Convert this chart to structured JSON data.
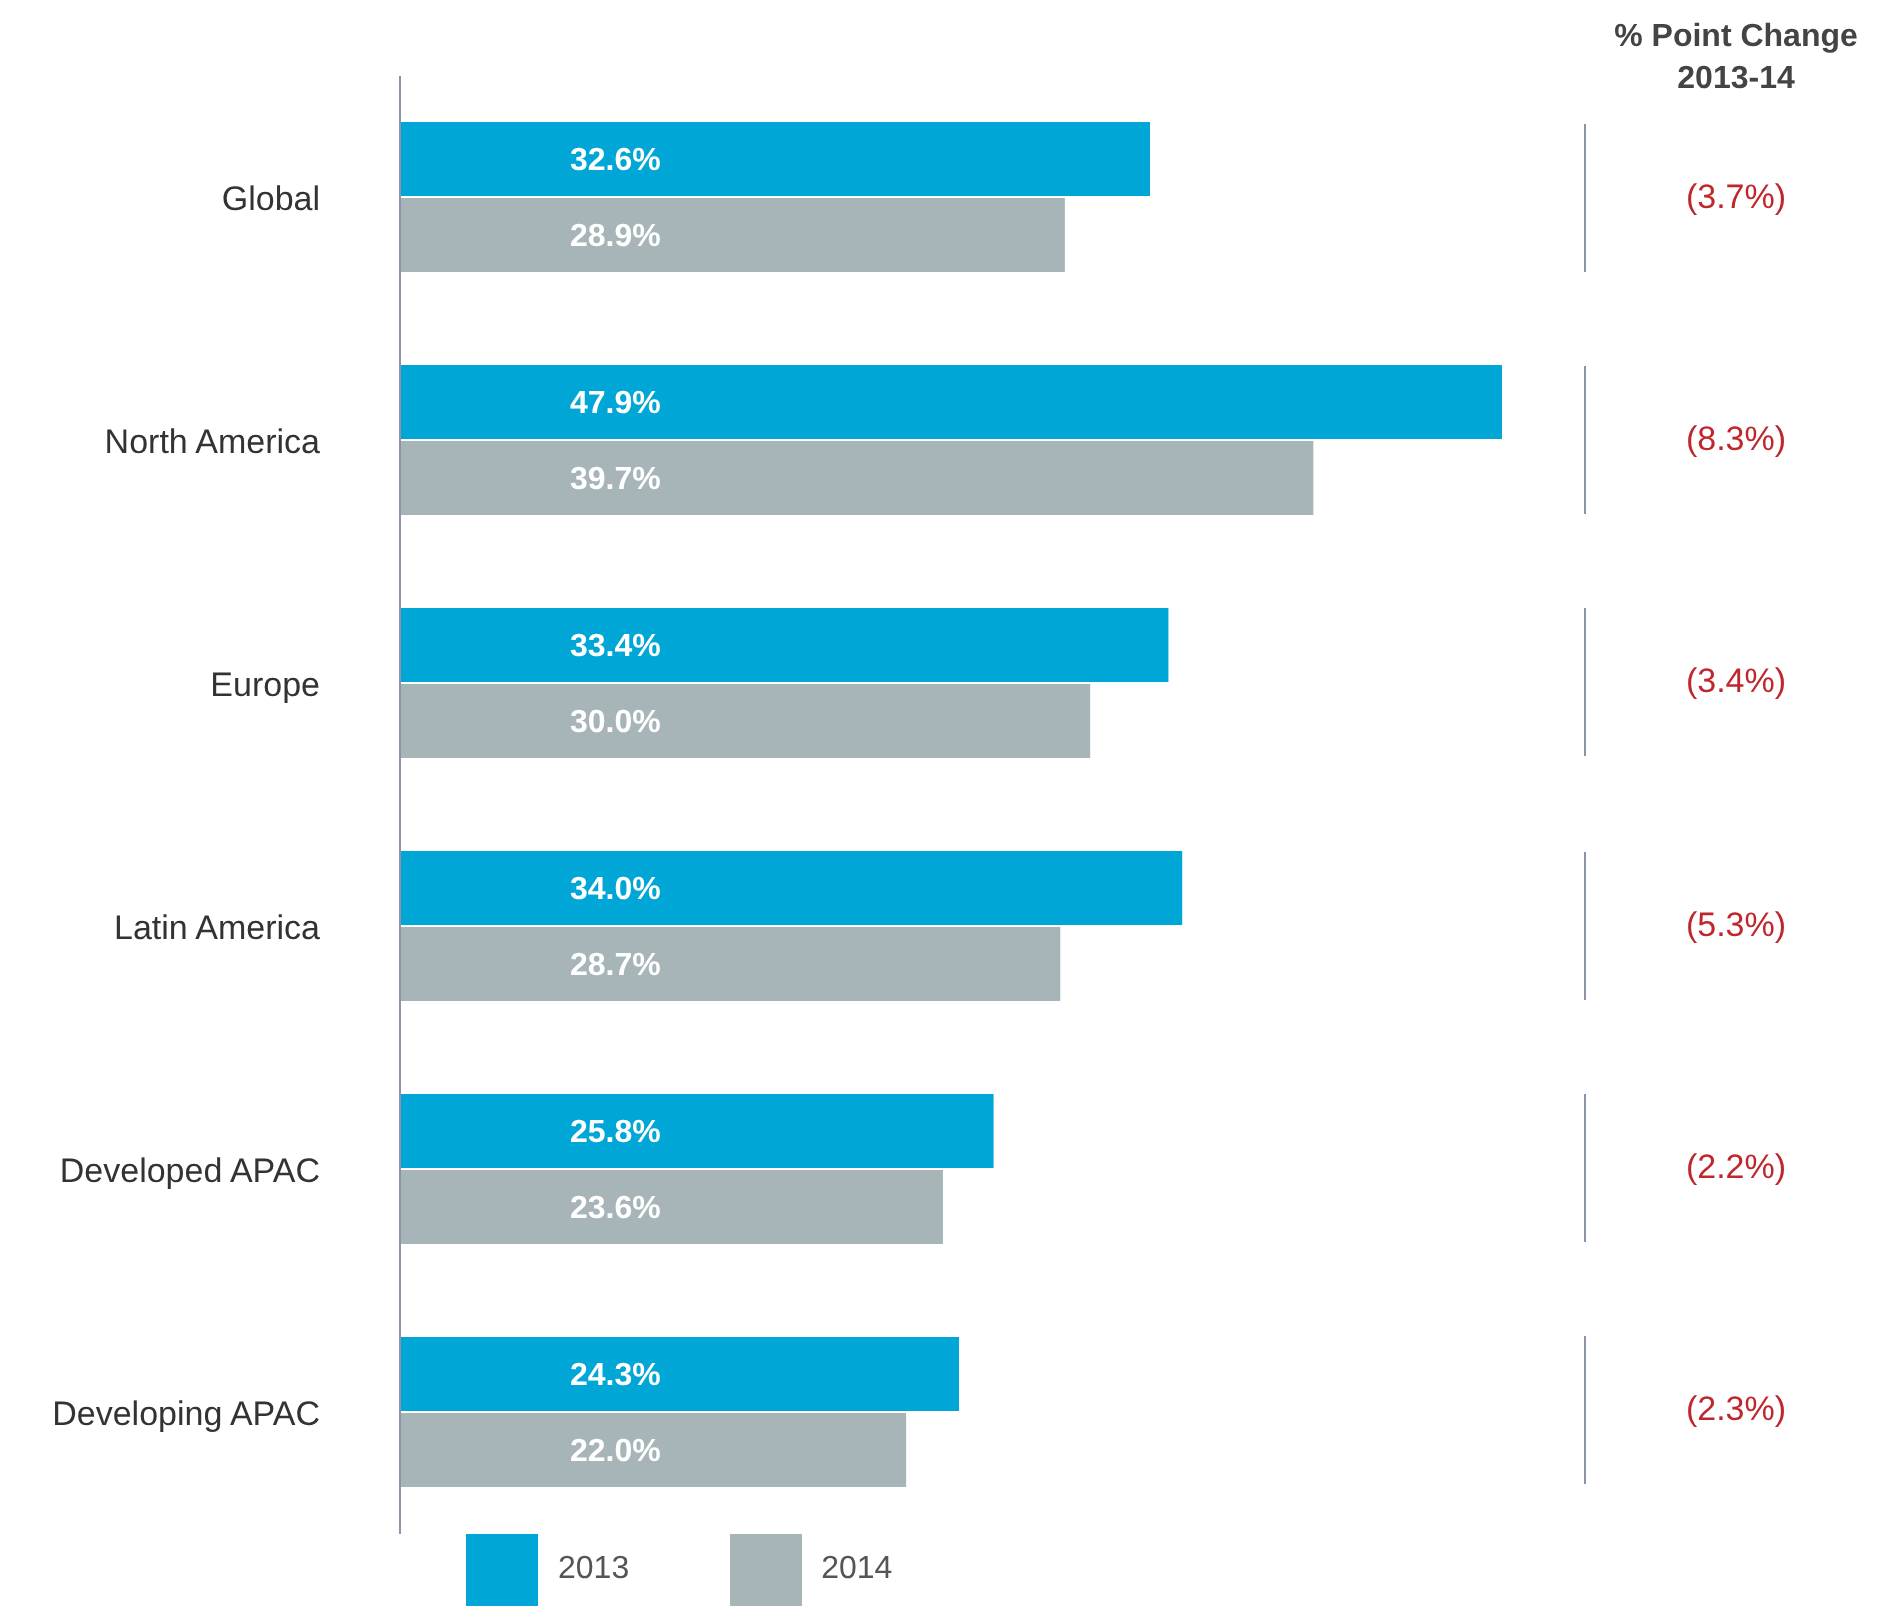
{
  "chart_data": {
    "type": "bar",
    "orientation": "horizontal",
    "categories": [
      "Global",
      "North America",
      "Europe",
      "Latin America",
      "Developed APAC",
      "Developing APAC"
    ],
    "series": [
      {
        "name": "2013",
        "color": "#00a6d6",
        "values": [
          32.6,
          47.9,
          33.4,
          34.0,
          25.8,
          24.3
        ],
        "value_labels": [
          "32.6%",
          "47.9%",
          "33.4%",
          "34.0%",
          "25.8%",
          "24.3%"
        ]
      },
      {
        "name": "2014",
        "color": "#a7b5b9",
        "values": [
          28.9,
          39.7,
          30.0,
          28.7,
          23.6,
          22.0
        ],
        "value_labels": [
          "28.9%",
          "39.7%",
          "30.0%",
          "28.7%",
          "23.6%",
          "22.0%"
        ]
      }
    ],
    "annotations": [
      "% Point Change\n2013-14",
      "(3.7%)",
      "(8.3%)",
      "(3.4%)",
      "(5.3%)",
      "(2.2%)",
      "(2.3%)"
    ],
    "legend": "bottom",
    "grid": false
  }
}
